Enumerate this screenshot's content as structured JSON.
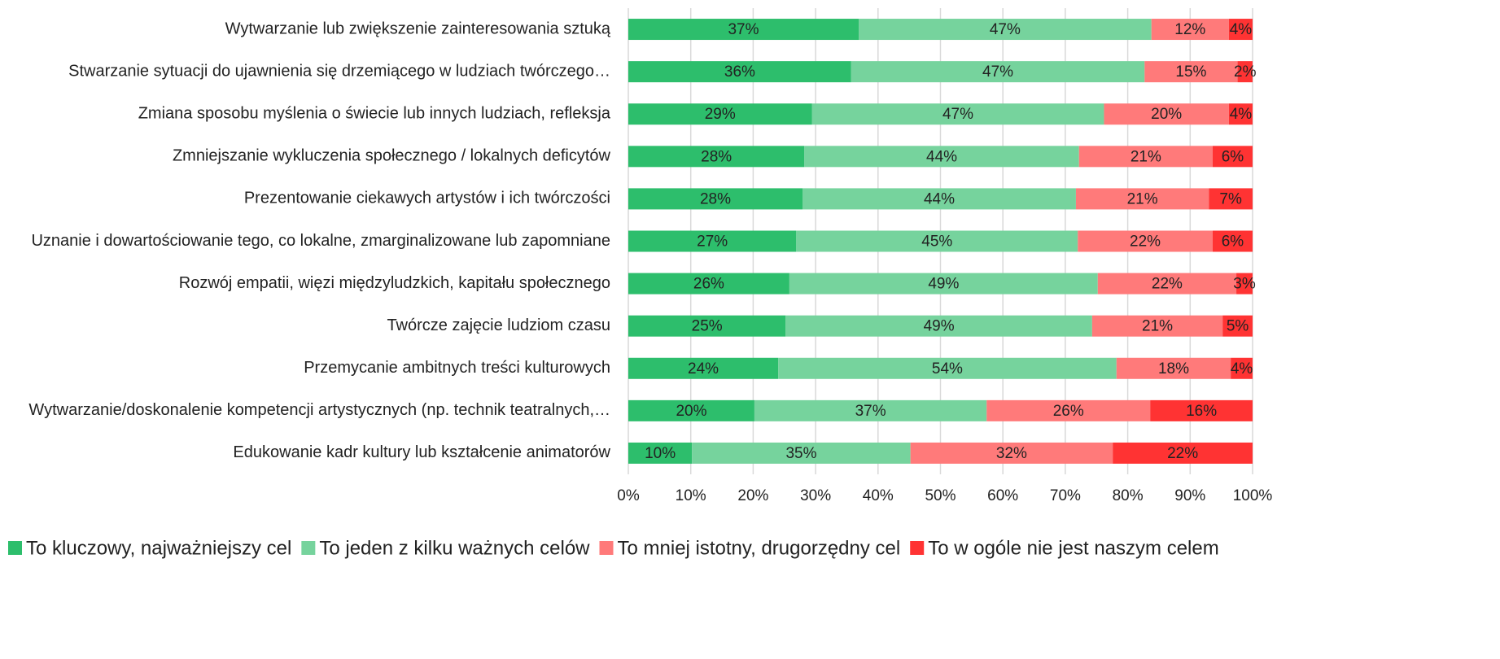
{
  "chart_data": {
    "type": "stacked_bar_horizontal",
    "categories": [
      "Wytwarzanie lub zwiększenie zainteresowania sztuką",
      "Stwarzanie sytuacji do ujawnienia się drzemiącego w ludziach twórczego…",
      "Zmiana sposobu myślenia o świecie lub innych ludziach, refleksja",
      "Zmniejszanie wykluczenia społecznego / lokalnych deficytów",
      "Prezentowanie ciekawych artystów i ich twórczości",
      "Uznanie i dowartościowanie tego, co lokalne, zmarginalizowane lub zapomniane",
      "Rozwój empatii, więzi międzyludzkich, kapitału społecznego",
      "Twórcze zajęcie ludziom czasu",
      "Przemycanie ambitnych treści kulturowych",
      "Wytwarzanie/doskonalenie kompetencji artystycznych (np. technik teatralnych,…",
      "Edukowanie kadr kultury lub kształcenie animatorów"
    ],
    "series": [
      {
        "name": "To kluczowy, najważniejszy cel",
        "color": "#2dbe6c",
        "values": [
          36.9,
          35.7,
          29.4,
          28.2,
          27.9,
          26.9,
          25.8,
          25.2,
          24.0,
          20.2,
          10.2
        ],
        "value_labels": [
          "37%",
          "36%",
          "29%",
          "28%",
          "28%",
          "27%",
          "26%",
          "25%",
          "24%",
          "20%",
          "10%"
        ]
      },
      {
        "name": "To jeden z kilku ważnych celów",
        "color": "#76d39d",
        "values": [
          46.9,
          47.0,
          46.8,
          44.0,
          43.8,
          45.1,
          49.4,
          49.1,
          54.2,
          37.2,
          35.0
        ],
        "value_labels": [
          "47%",
          "47%",
          "47%",
          "44%",
          "44%",
          "45%",
          "49%",
          "49%",
          "54%",
          "37%",
          "35%"
        ]
      },
      {
        "name": "To mniej istotny, drugorzędny cel",
        "color": "#ff7a7a",
        "values": [
          12.4,
          14.9,
          20.0,
          21.4,
          21.3,
          21.6,
          22.2,
          20.9,
          18.3,
          26.2,
          32.4
        ],
        "value_labels": [
          "12%",
          "15%",
          "20%",
          "21%",
          "21%",
          "22%",
          "22%",
          "21%",
          "18%",
          "26%",
          "32%"
        ]
      },
      {
        "name": "To w ogóle nie jest naszym celem",
        "color": "#ff3333",
        "values": [
          3.8,
          2.4,
          3.8,
          6.4,
          7.0,
          6.4,
          2.6,
          4.8,
          3.5,
          16.4,
          22.4
        ],
        "value_labels": [
          "4%",
          "2%",
          "4%",
          "6%",
          "7%",
          "6%",
          "3%",
          "5%",
          "4%",
          "16%",
          "22%"
        ]
      }
    ],
    "xlim": [
      0,
      100
    ],
    "xticks": [
      {
        "value": 0,
        "label": "0%"
      },
      {
        "value": 10,
        "label": "10%"
      },
      {
        "value": 20,
        "label": "20%"
      },
      {
        "value": 30,
        "label": "30%"
      },
      {
        "value": 40,
        "label": "40%"
      },
      {
        "value": 50,
        "label": "50%"
      },
      {
        "value": 60,
        "label": "60%"
      },
      {
        "value": 70,
        "label": "70%"
      },
      {
        "value": 80,
        "label": "80%"
      },
      {
        "value": 90,
        "label": "90%"
      },
      {
        "value": 100,
        "label": "100%"
      }
    ],
    "grid": true,
    "legend": "bottom"
  }
}
